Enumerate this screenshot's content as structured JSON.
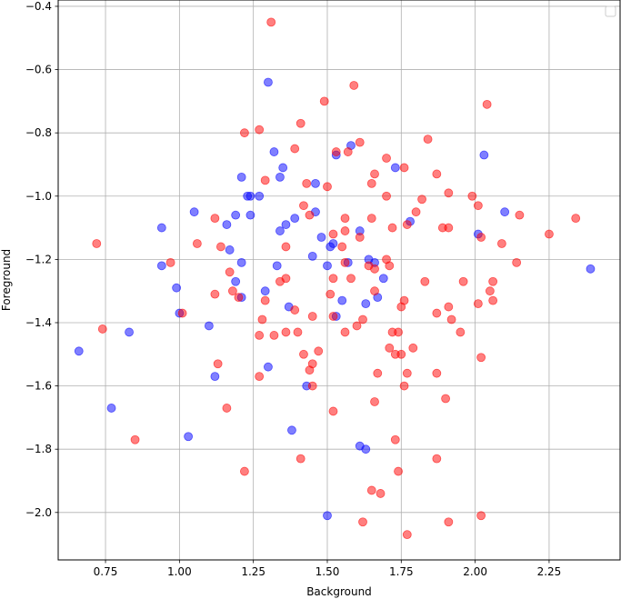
{
  "chart_data": {
    "type": "scatter",
    "xlabel": "Background",
    "ylabel": "Foreground",
    "xlim": [
      0.59,
      2.49
    ],
    "ylim": [
      -2.15,
      -0.38
    ],
    "xticks": [
      0.75,
      1.0,
      1.25,
      1.5,
      1.75,
      2.0,
      2.25
    ],
    "yticks": [
      -2.0,
      -1.8,
      -1.6,
      -1.4,
      -1.2,
      -1.0,
      -0.8,
      -0.6,
      -0.4
    ],
    "xtick_labels": [
      "0.75",
      "1.00",
      "1.25",
      "1.50",
      "1.75",
      "2.00",
      "2.25"
    ],
    "ytick_labels": [
      "−2.0",
      "−1.8",
      "−1.6",
      "−1.4",
      "−1.2",
      "−1.0",
      "−0.8",
      "−0.6",
      "−0.4"
    ],
    "grid": true,
    "legend": "top-right (empty)",
    "series": [
      {
        "color": "#0000ff",
        "points": [
          [
            1.3,
            -0.64
          ],
          [
            0.66,
            -1.49
          ],
          [
            0.77,
            -1.67
          ],
          [
            0.83,
            -1.43
          ],
          [
            0.94,
            -1.22
          ],
          [
            0.94,
            -1.1
          ],
          [
            0.99,
            -1.29
          ],
          [
            1.0,
            -1.37
          ],
          [
            1.03,
            -1.76
          ],
          [
            1.05,
            -1.05
          ],
          [
            1.1,
            -1.41
          ],
          [
            1.12,
            -1.57
          ],
          [
            1.16,
            -1.09
          ],
          [
            1.17,
            -1.17
          ],
          [
            1.19,
            -1.27
          ],
          [
            1.19,
            -1.06
          ],
          [
            1.21,
            -1.32
          ],
          [
            1.21,
            -1.21
          ],
          [
            1.21,
            -0.94
          ],
          [
            1.23,
            -1.0
          ],
          [
            1.24,
            -1.0
          ],
          [
            1.24,
            -1.06
          ],
          [
            1.27,
            -1.0
          ],
          [
            1.29,
            -1.3
          ],
          [
            1.3,
            -1.54
          ],
          [
            1.32,
            -0.86
          ],
          [
            1.33,
            -1.22
          ],
          [
            1.34,
            -0.94
          ],
          [
            1.34,
            -1.11
          ],
          [
            1.35,
            -0.91
          ],
          [
            1.36,
            -1.09
          ],
          [
            1.37,
            -1.35
          ],
          [
            1.38,
            -1.74
          ],
          [
            1.39,
            -1.07
          ],
          [
            1.43,
            -1.6
          ],
          [
            1.45,
            -1.19
          ],
          [
            1.46,
            -1.05
          ],
          [
            1.46,
            -0.96
          ],
          [
            1.48,
            -1.13
          ],
          [
            1.5,
            -2.01
          ],
          [
            1.5,
            -1.22
          ],
          [
            1.51,
            -1.16
          ],
          [
            1.52,
            -1.15
          ],
          [
            1.53,
            -1.38
          ],
          [
            1.53,
            -0.87
          ],
          [
            1.55,
            -1.33
          ],
          [
            1.57,
            -1.21
          ],
          [
            1.58,
            -0.84
          ],
          [
            1.61,
            -1.79
          ],
          [
            1.61,
            -1.11
          ],
          [
            1.63,
            -1.8
          ],
          [
            1.63,
            -1.34
          ],
          [
            1.64,
            -1.2
          ],
          [
            1.66,
            -1.21
          ],
          [
            1.67,
            -1.32
          ],
          [
            1.69,
            -1.26
          ],
          [
            1.73,
            -0.91
          ],
          [
            1.78,
            -1.08
          ],
          [
            2.01,
            -1.12
          ],
          [
            2.03,
            -0.87
          ],
          [
            2.1,
            -1.05
          ],
          [
            2.39,
            -1.23
          ]
        ]
      },
      {
        "color": "#ff0000",
        "points": [
          [
            1.31,
            -0.45
          ],
          [
            1.59,
            -0.65
          ],
          [
            2.04,
            -0.71
          ],
          [
            1.49,
            -0.7
          ],
          [
            1.41,
            -0.77
          ],
          [
            1.27,
            -0.79
          ],
          [
            1.22,
            -0.8
          ],
          [
            1.39,
            -0.85
          ],
          [
            1.61,
            -0.83
          ],
          [
            1.53,
            -0.86
          ],
          [
            1.57,
            -0.86
          ],
          [
            1.7,
            -0.88
          ],
          [
            1.84,
            -0.82
          ],
          [
            1.76,
            -0.91
          ],
          [
            1.87,
            -0.93
          ],
          [
            1.66,
            -0.93
          ],
          [
            1.29,
            -0.95
          ],
          [
            1.43,
            -0.96
          ],
          [
            1.5,
            -0.97
          ],
          [
            1.65,
            -0.96
          ],
          [
            1.7,
            -1.0
          ],
          [
            1.82,
            -1.01
          ],
          [
            1.91,
            -0.99
          ],
          [
            1.99,
            -1.0
          ],
          [
            2.01,
            -1.03
          ],
          [
            1.42,
            -1.03
          ],
          [
            1.44,
            -1.06
          ],
          [
            1.56,
            -1.07
          ],
          [
            1.65,
            -1.07
          ],
          [
            1.8,
            -1.05
          ],
          [
            1.89,
            -1.1
          ],
          [
            1.91,
            -1.1
          ],
          [
            1.72,
            -1.1
          ],
          [
            1.77,
            -1.09
          ],
          [
            1.12,
            -1.07
          ],
          [
            0.72,
            -1.15
          ],
          [
            1.06,
            -1.15
          ],
          [
            1.14,
            -1.16
          ],
          [
            1.36,
            -1.16
          ],
          [
            1.52,
            -1.12
          ],
          [
            1.56,
            -1.11
          ],
          [
            1.61,
            -1.13
          ],
          [
            1.55,
            -1.16
          ],
          [
            2.02,
            -1.13
          ],
          [
            2.09,
            -1.15
          ],
          [
            2.15,
            -1.06
          ],
          [
            2.25,
            -1.12
          ],
          [
            2.34,
            -1.07
          ],
          [
            0.97,
            -1.21
          ],
          [
            1.17,
            -1.24
          ],
          [
            1.36,
            -1.26
          ],
          [
            1.34,
            -1.27
          ],
          [
            1.52,
            -1.26
          ],
          [
            1.56,
            -1.21
          ],
          [
            1.58,
            -1.26
          ],
          [
            1.64,
            -1.22
          ],
          [
            1.66,
            -1.23
          ],
          [
            1.7,
            -1.2
          ],
          [
            1.71,
            -1.22
          ],
          [
            1.83,
            -1.27
          ],
          [
            1.96,
            -1.27
          ],
          [
            2.06,
            -1.27
          ],
          [
            2.14,
            -1.21
          ],
          [
            2.05,
            -1.3
          ],
          [
            2.06,
            -1.33
          ],
          [
            2.01,
            -1.34
          ],
          [
            1.12,
            -1.31
          ],
          [
            1.18,
            -1.3
          ],
          [
            1.2,
            -1.32
          ],
          [
            1.29,
            -1.33
          ],
          [
            1.51,
            -1.31
          ],
          [
            1.52,
            -1.38
          ],
          [
            1.62,
            -1.39
          ],
          [
            1.66,
            -1.3
          ],
          [
            1.76,
            -1.33
          ],
          [
            1.75,
            -1.35
          ],
          [
            1.87,
            -1.37
          ],
          [
            1.91,
            -1.35
          ],
          [
            1.92,
            -1.39
          ],
          [
            1.01,
            -1.37
          ],
          [
            0.74,
            -1.42
          ],
          [
            1.28,
            -1.39
          ],
          [
            1.32,
            -1.44
          ],
          [
            1.36,
            -1.43
          ],
          [
            1.39,
            -1.36
          ],
          [
            1.4,
            -1.43
          ],
          [
            1.45,
            -1.38
          ],
          [
            1.56,
            -1.43
          ],
          [
            1.6,
            -1.41
          ],
          [
            1.72,
            -1.43
          ],
          [
            1.74,
            -1.43
          ],
          [
            1.27,
            -1.44
          ],
          [
            1.42,
            -1.5
          ],
          [
            1.47,
            -1.49
          ],
          [
            1.71,
            -1.48
          ],
          [
            1.73,
            -1.5
          ],
          [
            1.75,
            -1.5
          ],
          [
            1.79,
            -1.48
          ],
          [
            1.95,
            -1.43
          ],
          [
            2.02,
            -1.51
          ],
          [
            1.13,
            -1.53
          ],
          [
            1.27,
            -1.57
          ],
          [
            1.44,
            -1.55
          ],
          [
            1.45,
            -1.53
          ],
          [
            1.45,
            -1.6
          ],
          [
            1.67,
            -1.56
          ],
          [
            1.77,
            -1.56
          ],
          [
            1.76,
            -1.6
          ],
          [
            1.87,
            -1.56
          ],
          [
            1.66,
            -1.65
          ],
          [
            1.9,
            -1.64
          ],
          [
            1.16,
            -1.67
          ],
          [
            1.52,
            -1.68
          ],
          [
            0.85,
            -1.77
          ],
          [
            1.41,
            -1.83
          ],
          [
            1.73,
            -1.77
          ],
          [
            1.87,
            -1.83
          ],
          [
            1.22,
            -1.87
          ],
          [
            1.74,
            -1.87
          ],
          [
            1.65,
            -1.93
          ],
          [
            1.68,
            -1.94
          ],
          [
            2.02,
            -2.01
          ],
          [
            1.62,
            -2.03
          ],
          [
            1.91,
            -2.03
          ],
          [
            1.77,
            -2.07
          ]
        ]
      }
    ]
  }
}
